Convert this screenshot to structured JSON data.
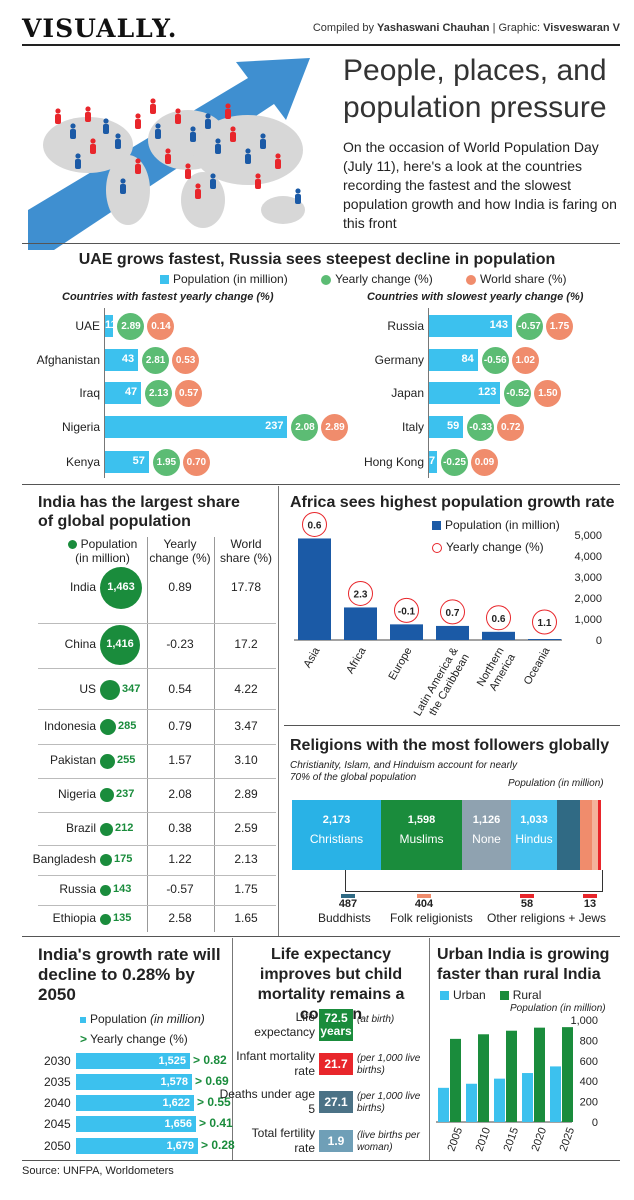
{
  "masthead": "VISUALLY.",
  "credit": {
    "prefix": "Compiled by ",
    "author": "Yashaswani Chauhan",
    "sep": " | Graphic: ",
    "graphic": "Visveswaran V"
  },
  "headline": "People, places, and population pressure",
  "intro": "On the occasion of World Population Day (July 11), here's a look at the countries recording the fastest and the slowest population growth and how India is faring on this front",
  "section1": {
    "title": "UAE grows fastest, Russia sees steepest decline in population",
    "legend": [
      "Population (in million)",
      "Yearly change (%)",
      "World share (%)"
    ],
    "fast_sub": "Countries with fastest yearly change (%)",
    "slow_sub": "Countries with slowest yearly change (%)"
  },
  "section2": {
    "title": "India has the largest share of global population",
    "col1": "Population (in million)",
    "col2": "Yearly change (%)",
    "col3": "World share (%)"
  },
  "section3": {
    "title": "Africa sees highest population growth rate",
    "legend_bar": "Population (in million)",
    "legend_circle": "Yearly change (%)"
  },
  "section4": {
    "title": "Religions with the most followers globally",
    "note": "Christianity, Islam, and Hinduism account for nearly 70% of the global population",
    "unit": "Population (in million)"
  },
  "section5": {
    "title": "India's growth rate will decline to 0.28% by 2050",
    "legend_bar": "Population",
    "legend_bar_unit": "(in million)",
    "legend_arrow": "Yearly change (%)"
  },
  "section6": {
    "title": "Life expectancy improves but child mortality remains a concern"
  },
  "section7": {
    "title": "Urban India is growing faster than rural India",
    "legend": [
      "Urban",
      "Rural"
    ],
    "unit": "Population (in million)"
  },
  "source": "Source: UNFPA, Worldometers",
  "colors": {
    "bar": "#3cc1ee",
    "green": "#5cbc74",
    "orange": "#f08c6c",
    "navy": "#1b5aa6",
    "darkgreen": "#1a8c3c"
  },
  "chart_data": [
    {
      "type": "bar",
      "title": "Countries with fastest yearly change (%)",
      "categories": [
        "UAE",
        "Afghanistan",
        "Iraq",
        "Nigeria",
        "Kenya"
      ],
      "series": [
        {
          "name": "Population (in million)",
          "values": [
            11,
            43,
            47,
            237,
            57
          ]
        },
        {
          "name": "Yearly change (%)",
          "values": [
            "2.89",
            "2.81",
            "2.13",
            "2.08",
            "1.95"
          ]
        },
        {
          "name": "World share (%)",
          "values": [
            "0.14",
            "0.53",
            "0.57",
            "2.89",
            "0.70"
          ]
        }
      ]
    },
    {
      "type": "bar",
      "title": "Countries with slowest yearly change (%)",
      "categories": [
        "Russia",
        "Germany",
        "Japan",
        "Italy",
        "Hong Kong"
      ],
      "series": [
        {
          "name": "Population (in million)",
          "values": [
            143,
            84,
            123,
            59,
            7
          ]
        },
        {
          "name": "Yearly change (%)",
          "values": [
            "-0.57",
            "-0.56",
            "-0.52",
            "-0.33",
            "-0.25"
          ]
        },
        {
          "name": "World share (%)",
          "values": [
            "1.75",
            "1.02",
            "1.50",
            "0.72",
            "0.09"
          ]
        }
      ]
    },
    {
      "type": "table",
      "title": "India has the largest share of global population",
      "rows": [
        {
          "country": "India",
          "pop": "1,463",
          "change": "0.89",
          "share": "17.78"
        },
        {
          "country": "China",
          "pop": "1,416",
          "change": "-0.23",
          "share": "17.2"
        },
        {
          "country": "US",
          "pop": "347",
          "change": "0.54",
          "share": "4.22"
        },
        {
          "country": "Indonesia",
          "pop": "285",
          "change": "0.79",
          "share": "3.47"
        },
        {
          "country": "Pakistan",
          "pop": "255",
          "change": "1.57",
          "share": "3.10"
        },
        {
          "country": "Nigeria",
          "pop": "237",
          "change": "2.08",
          "share": "2.89"
        },
        {
          "country": "Brazil",
          "pop": "212",
          "change": "0.38",
          "share": "2.59"
        },
        {
          "country": "Bangladesh",
          "pop": "175",
          "change": "1.22",
          "share": "2.13"
        },
        {
          "country": "Russia",
          "pop": "143",
          "change": "-0.57",
          "share": "1.75"
        },
        {
          "country": "Ethiopia",
          "pop": "135",
          "change": "2.58",
          "share": "1.65"
        }
      ]
    },
    {
      "type": "bar",
      "title": "Africa sees highest population growth rate",
      "categories": [
        "Asia",
        "Africa",
        "Europe",
        "Latin America & the Caribbean",
        "Northern America",
        "Oceania"
      ],
      "series": [
        {
          "name": "Population (in million)",
          "values": [
            4835,
            1550,
            745,
            670,
            390,
            47
          ]
        },
        {
          "name": "Yearly change (%)",
          "values": [
            "0.6",
            "2.3",
            "-0.1",
            "0.7",
            "0.6",
            "1.1"
          ]
        }
      ],
      "ylim": [
        0,
        5000
      ],
      "yticks": [
        "0",
        "1,000",
        "2,000",
        "3,000",
        "4,000",
        "5,000"
      ]
    },
    {
      "type": "bar",
      "title": "Religions with the most followers globally",
      "categories": [
        "Christians",
        "Muslims",
        "None",
        "Hindus",
        "Buddhists",
        "Folk religionists",
        "Other religions",
        "Jews"
      ],
      "values": [
        "2,173",
        "1,598",
        "1,126",
        "1,033",
        "487",
        "404",
        "58",
        "13"
      ],
      "label_others": "Other religions + Jews"
    },
    {
      "type": "bar",
      "title": "India's growth rate will decline to 0.28% by 2050",
      "categories": [
        "2030",
        "2035",
        "2040",
        "2045",
        "2050"
      ],
      "series": [
        {
          "name": "Population (in million)",
          "values": [
            "1,525",
            "1,578",
            "1,622",
            "1,656",
            "1,679"
          ]
        },
        {
          "name": "Yearly change (%)",
          "values": [
            "0.82",
            "0.69",
            "0.55",
            "0.41",
            "0.28"
          ]
        }
      ]
    },
    {
      "type": "table",
      "title": "Life expectancy improves but child mortality remains a concern",
      "rows": [
        {
          "label": "Life expectancy",
          "value": "72.5 years",
          "note": "(at birth)",
          "color": "#1a8c3c"
        },
        {
          "label": "Infant mortality rate",
          "value": "21.7",
          "note": "(per 1,000 live births)",
          "color": "#e8262b"
        },
        {
          "label": "Deaths under age 5",
          "value": "27.1",
          "note": "(per 1,000 live births)",
          "color": "#4b7286"
        },
        {
          "label": "Total fertility rate",
          "value": "1.9",
          "note": "(live births per woman)",
          "color": "#6f9fb7"
        }
      ]
    },
    {
      "type": "bar",
      "title": "Urban India is growing faster than rural India",
      "categories": [
        "2005",
        "2010",
        "2015",
        "2020",
        "2025"
      ],
      "series": [
        {
          "name": "Urban",
          "values": [
            335,
            375,
            425,
            480,
            545
          ]
        },
        {
          "name": "Rural",
          "values": [
            815,
            860,
            895,
            925,
            930
          ]
        }
      ],
      "ylim": [
        0,
        1000
      ],
      "yticks": [
        "0",
        "200",
        "400",
        "600",
        "800",
        "1,000"
      ]
    }
  ]
}
